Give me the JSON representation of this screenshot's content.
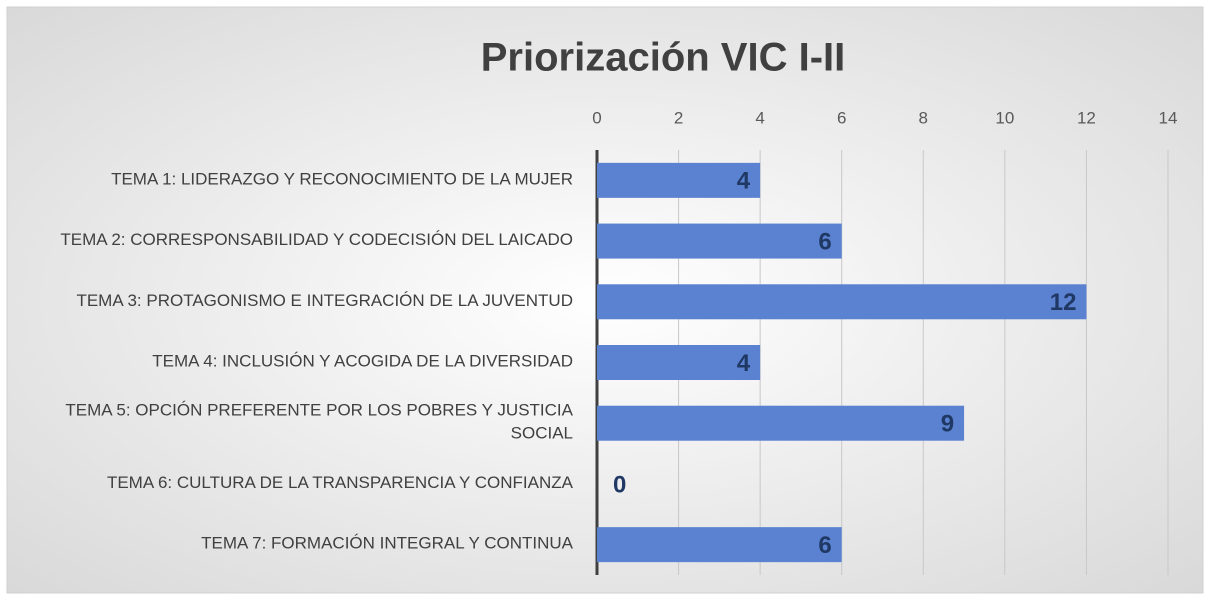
{
  "chart_data": {
    "type": "hbar",
    "title": "Priorización VIC I-II",
    "categories": [
      "TEMA 1: LIDERAZGO Y RECONOCIMIENTO DE LA MUJER",
      "TEMA 2: CORRESPONSABILIDAD Y CODECISIÓN DEL LAICADO",
      "TEMA 3: PROTAGONISMO E INTEGRACIÓN DE LA JUVENTUD",
      "TEMA 4: INCLUSIÓN Y ACOGIDA DE LA DIVERSIDAD",
      "TEMA 5: OPCIÓN PREFERENTE POR LOS POBRES Y JUSTICIA SOCIAL",
      "TEMA 6: CULTURA DE LA TRANSPARENCIA Y CONFIANZA",
      "TEMA 7: FORMACIÓN INTEGRAL Y CONTINUA"
    ],
    "values": [
      4,
      6,
      12,
      4,
      9,
      0,
      6
    ],
    "color": "#5b82d0",
    "label_color": "#1f3864",
    "xlim": [
      0,
      14
    ],
    "xticks": [
      0,
      2,
      4,
      6,
      8,
      10,
      12,
      14
    ],
    "grid": true
  }
}
